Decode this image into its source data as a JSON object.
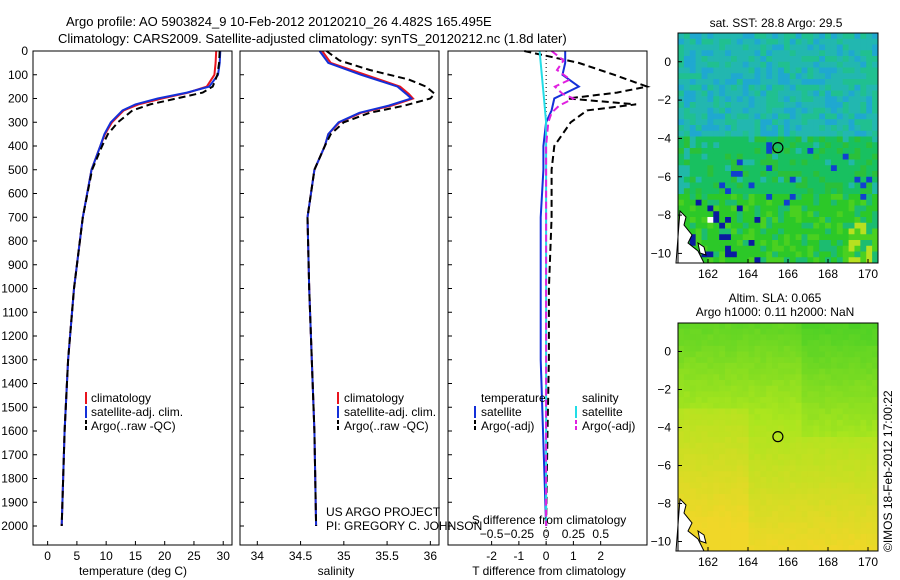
{
  "title_line1": "Argo profile: AO 5903824_9 10-Feb-2012 20120210_26 4.482S 165.495E",
  "title_line2": "Climatology: CARS2009. Satellite-adjusted climatology: synTS_20120212.nc (1.8d later)",
  "project_line1": "US ARGO PROJECT",
  "project_line2": "PI: GREGORY C. JOHNSON",
  "imos_stamp": "©IMOS 18-Feb-2012 17:00:22",
  "colors": {
    "clim": "#e8141e",
    "sat": "#1430d8",
    "argo": "#000000",
    "sal_sat": "#22dde6",
    "sal_argo": "#e020e0"
  },
  "depth_ticks": [
    0,
    100,
    200,
    300,
    400,
    500,
    600,
    700,
    800,
    900,
    1000,
    1100,
    1200,
    1300,
    1400,
    1500,
    1600,
    1700,
    1800,
    1900,
    2000
  ],
  "chart_data": [
    {
      "type": "line",
      "name": "temperature-panel",
      "xlabel": "temperature (deg C)",
      "ylabel": "depth",
      "xlim": [
        -2.5,
        31.5
      ],
      "ylim": [
        2080,
        0
      ],
      "xticks": [
        0,
        5,
        10,
        15,
        20,
        25,
        30
      ],
      "legend": [
        "climatology",
        "satellite-adj. clim.",
        "Argo(..raw -QC)"
      ],
      "series": [
        {
          "name": "climatology",
          "depth": [
            0,
            50,
            100,
            150,
            175,
            200,
            225,
            250,
            300,
            350,
            400,
            500,
            700,
            1000,
            1300,
            1600,
            2000
          ],
          "values": [
            28.8,
            28.7,
            28.5,
            27.2,
            24.0,
            19.5,
            15.5,
            13.0,
            11.0,
            9.8,
            9.0,
            7.5,
            6.0,
            4.5,
            3.5,
            2.9,
            2.4
          ]
        },
        {
          "name": "satellite-adj. clim.",
          "depth": [
            0,
            50,
            100,
            150,
            175,
            200,
            225,
            250,
            300,
            350,
            400,
            500,
            700,
            1000,
            1300,
            1600,
            2000
          ],
          "values": [
            29.5,
            29.4,
            29.1,
            27.6,
            23.8,
            18.8,
            15.0,
            12.8,
            10.8,
            9.7,
            9.0,
            7.5,
            6.0,
            4.5,
            3.5,
            2.9,
            2.4
          ]
        },
        {
          "name": "Argo(..raw -QC)",
          "depth": [
            0,
            50,
            100,
            150,
            175,
            200,
            225,
            250,
            300,
            350,
            400,
            500,
            700,
            1000,
            1300,
            1600,
            2000
          ],
          "values": [
            29.4,
            29.3,
            29.0,
            28.2,
            26.5,
            22.0,
            17.5,
            14.5,
            12.0,
            10.3,
            9.3,
            7.6,
            6.0,
            4.5,
            3.5,
            2.9,
            2.4
          ]
        }
      ]
    },
    {
      "type": "line",
      "name": "salinity-panel",
      "xlabel": "salinity",
      "ylabel": "depth",
      "xlim": [
        33.8,
        36.1
      ],
      "ylim": [
        2080,
        0
      ],
      "xticks": [
        34,
        34.5,
        35,
        35.5,
        36
      ],
      "legend": [
        "climatology",
        "satellite-adj. clim.",
        "Argo(..raw -QC)"
      ],
      "series": [
        {
          "name": "climatology",
          "depth": [
            0,
            50,
            100,
            150,
            180,
            200,
            230,
            260,
            300,
            350,
            400,
            500,
            700,
            1000,
            1300,
            1600,
            2000
          ],
          "values": [
            34.75,
            34.85,
            35.25,
            35.65,
            35.75,
            35.8,
            35.55,
            35.2,
            34.95,
            34.82,
            34.78,
            34.66,
            34.58,
            34.6,
            34.63,
            34.66,
            34.68
          ]
        },
        {
          "name": "satellite-adj. clim.",
          "depth": [
            0,
            50,
            100,
            150,
            180,
            200,
            230,
            260,
            300,
            350,
            400,
            500,
            700,
            1000,
            1300,
            1600,
            2000
          ],
          "values": [
            34.72,
            34.82,
            35.2,
            35.62,
            35.72,
            35.78,
            35.52,
            35.18,
            34.94,
            34.82,
            34.78,
            34.66,
            34.58,
            34.6,
            34.63,
            34.66,
            34.68
          ]
        },
        {
          "name": "Argo(..raw -QC)",
          "depth": [
            0,
            40,
            80,
            120,
            150,
            180,
            200,
            230,
            260,
            300,
            350,
            400,
            500,
            700,
            1000,
            1300,
            1600,
            2000
          ],
          "values": [
            34.8,
            34.95,
            35.3,
            35.75,
            35.95,
            36.05,
            36.0,
            35.7,
            35.3,
            35.0,
            34.85,
            34.78,
            34.66,
            34.58,
            34.6,
            34.63,
            34.66,
            34.68
          ]
        }
      ]
    },
    {
      "type": "line",
      "name": "difference-panel",
      "xlabel_top": "S difference from climatology",
      "xlabel": "T difference from climatology",
      "xlim": [
        -3.6,
        3.7
      ],
      "ylim": [
        2080,
        0
      ],
      "xticks_T": [
        -2,
        -1,
        0,
        1,
        2
      ],
      "xticks_S": [
        -0.5,
        -0.25,
        0,
        0.25,
        0.5
      ],
      "legend_temperature_title": "temperature",
      "legend_salinity_title": "salinity",
      "legend_temperature": [
        "satellite",
        "Argo(-adj)"
      ],
      "legend_salinity": [
        "satellite",
        "Argo(-adj)"
      ],
      "series": [
        {
          "name": "T satellite",
          "depth": [
            0,
            50,
            100,
            150,
            200,
            250,
            300,
            400,
            500,
            700,
            1000,
            1300,
            2000
          ],
          "values": [
            0.7,
            0.7,
            0.6,
            1.2,
            0.3,
            0.2,
            0.0,
            -0.1,
            -0.1,
            -0.2,
            -0.2,
            -0.2,
            0.0
          ]
        },
        {
          "name": "T Argo(-adj)",
          "depth": [
            0,
            50,
            100,
            150,
            175,
            200,
            225,
            250,
            300,
            400,
            500,
            700,
            1000,
            1300,
            1600,
            2000
          ],
          "values": [
            -0.8,
            1.2,
            2.5,
            3.7,
            2.6,
            0.8,
            3.3,
            1.5,
            0.9,
            0.3,
            0.2,
            0.2,
            0.1,
            0.1,
            0.05,
            0.0
          ]
        },
        {
          "name": "S satellite",
          "depth": [
            0,
            50,
            100,
            150,
            200,
            300,
            400,
            500,
            700,
            1000,
            1300,
            2000
          ],
          "values": [
            -0.06,
            -0.05,
            -0.04,
            -0.03,
            -0.02,
            0.0,
            0.0,
            0.0,
            0.0,
            0.0,
            0.0,
            0.0
          ]
        },
        {
          "name": "S Argo(-adj)",
          "depth": [
            0,
            40,
            80,
            120,
            150,
            180,
            200,
            230,
            260,
            300,
            400,
            500,
            700,
            1000,
            1300,
            2000
          ],
          "values": [
            0.05,
            0.16,
            0.1,
            0.22,
            0.08,
            0.15,
            0.25,
            0.12,
            0.05,
            0.02,
            0.0,
            0.0,
            0.0,
            0.0,
            0.0,
            0.0
          ]
        }
      ]
    },
    {
      "type": "heatmap",
      "name": "sst-map",
      "title": "sat. SST: 28.8 Argo: 29.5",
      "xlim": [
        160.5,
        170.5
      ],
      "ylim": [
        -10.5,
        1.5
      ],
      "xticks": [
        162,
        164,
        166,
        168,
        170
      ],
      "yticks": [
        0,
        -2,
        -4,
        -6,
        -8,
        -10
      ],
      "marker": {
        "lon": 165.495,
        "lat": -4.482
      }
    },
    {
      "type": "heatmap",
      "name": "sla-map",
      "title_line1": "Altim. SLA: 0.065",
      "title_line2": "Argo h1000: 0.11 h2000: NaN",
      "xlim": [
        160.5,
        170.5
      ],
      "ylim": [
        -10.5,
        1.5
      ],
      "xticks": [
        162,
        164,
        166,
        168,
        170
      ],
      "yticks": [
        0,
        -2,
        -4,
        -6,
        -8,
        -10
      ],
      "marker": {
        "lon": 165.495,
        "lat": -4.482
      }
    }
  ]
}
